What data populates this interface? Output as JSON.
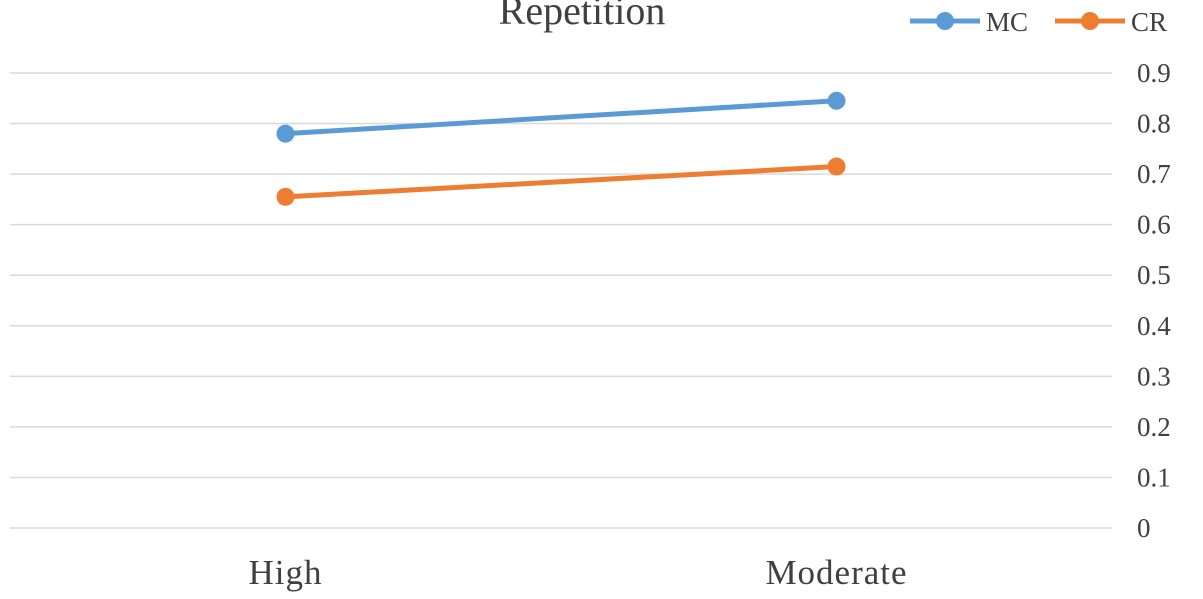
{
  "chart_data": {
    "type": "line",
    "title": "Repetition",
    "categories": [
      "High",
      "Moderate"
    ],
    "series": [
      {
        "name": "MC",
        "values": [
          0.78,
          0.845
        ],
        "color": "#5b9bd5"
      },
      {
        "name": "CR",
        "values": [
          0.655,
          0.715
        ],
        "color": "#ed7d31"
      }
    ],
    "ylim": [
      0,
      0.9
    ],
    "yticks": [
      "0",
      "0.1",
      "0.2",
      "0.3",
      "0.4",
      "0.5",
      "0.6",
      "0.7",
      "0.8",
      "0.9"
    ],
    "y_axis_position": "right",
    "grid": true,
    "legend": "top-right"
  }
}
